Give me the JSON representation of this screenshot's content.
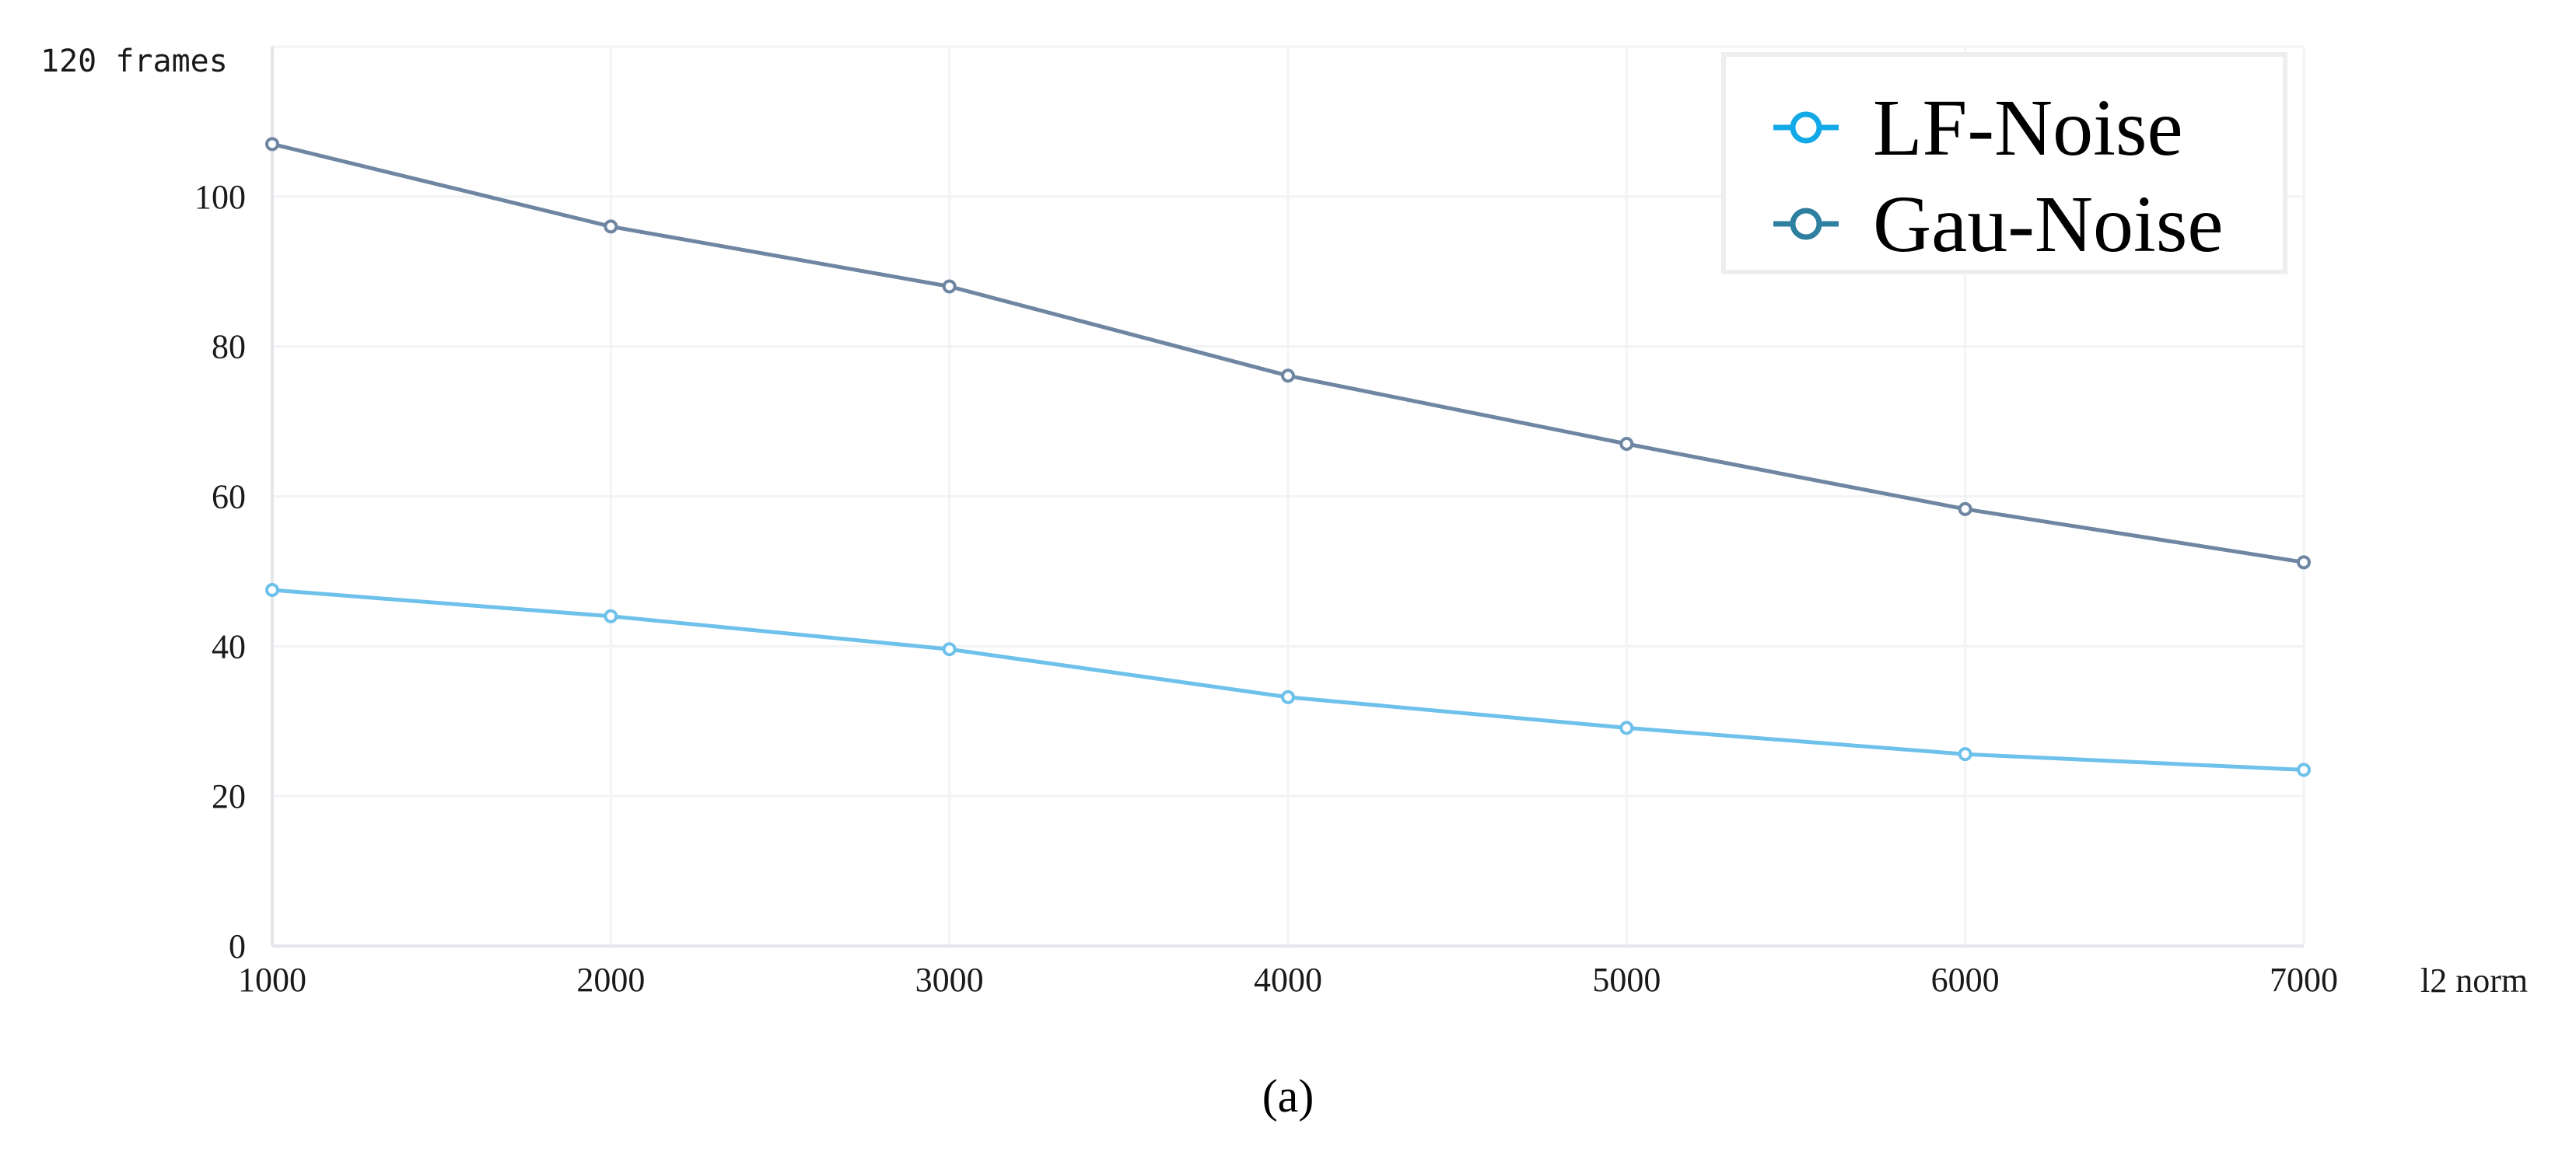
{
  "chart_data": {
    "type": "line",
    "xlabel": "l2 norm",
    "ylabel": "120 frames",
    "caption": "(a)",
    "x": [
      1000,
      2000,
      3000,
      4000,
      5000,
      6000,
      7000
    ],
    "xticks": [
      "1000",
      "2000",
      "3000",
      "4000",
      "5000",
      "6000",
      "7000"
    ],
    "yticks": [
      "0",
      "20",
      "40",
      "60",
      "80",
      "100"
    ],
    "xlim": [
      1000,
      7000
    ],
    "ylim": [
      0,
      120
    ],
    "grid": true,
    "legend_position": "top-right",
    "series": [
      {
        "name": "LF-Noise",
        "color": "#6ec1ea",
        "legend_color": "#13a8e6",
        "values": [
          47.5,
          44,
          39.6,
          33.2,
          29.1,
          25.6,
          23.5
        ]
      },
      {
        "name": "Gau-Noise",
        "color": "#6f86a3",
        "legend_color": "#2e7fa0",
        "values": [
          107,
          96,
          88,
          76.1,
          67,
          58.3,
          51.2
        ]
      }
    ]
  }
}
